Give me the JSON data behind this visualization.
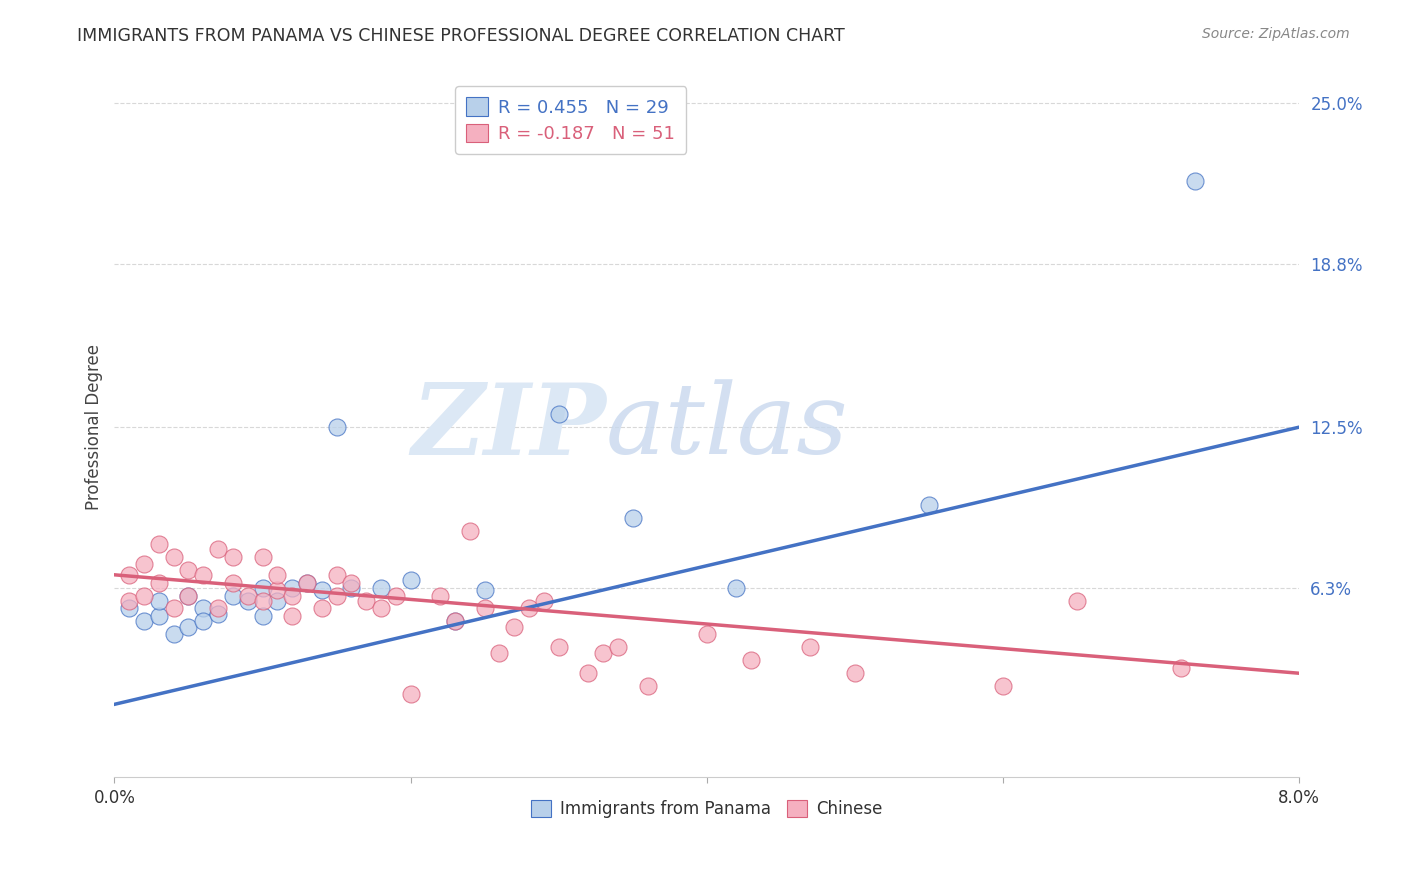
{
  "title": "IMMIGRANTS FROM PANAMA VS CHINESE PROFESSIONAL DEGREE CORRELATION CHART",
  "source": "Source: ZipAtlas.com",
  "ylabel": "Professional Degree",
  "xlim": [
    0.0,
    0.08
  ],
  "ylim": [
    -0.01,
    0.26
  ],
  "xticks": [
    0.0,
    0.02,
    0.04,
    0.06,
    0.08
  ],
  "xtick_labels": [
    "0.0%",
    "",
    "",
    "",
    "8.0%"
  ],
  "ytick_labels": [
    "25.0%",
    "18.8%",
    "12.5%",
    "6.3%"
  ],
  "yticks": [
    0.25,
    0.188,
    0.125,
    0.063
  ],
  "blue_label": "Immigrants from Panama",
  "pink_label": "Chinese",
  "blue_R": "R = 0.455",
  "blue_N": "N = 29",
  "pink_R": "R = -0.187",
  "pink_N": "N = 51",
  "blue_color": "#b8d0ea",
  "pink_color": "#f5b0c0",
  "blue_line_color": "#4472c4",
  "pink_line_color": "#d9607a",
  "background_color": "#ffffff",
  "grid_color": "#d8d8d8",
  "watermark_color": "#dce8f5",
  "blue_scatter_x": [
    0.001,
    0.002,
    0.003,
    0.003,
    0.004,
    0.005,
    0.005,
    0.006,
    0.006,
    0.007,
    0.008,
    0.009,
    0.01,
    0.01,
    0.011,
    0.012,
    0.013,
    0.014,
    0.015,
    0.016,
    0.018,
    0.02,
    0.023,
    0.025,
    0.03,
    0.035,
    0.042,
    0.055,
    0.073
  ],
  "blue_scatter_y": [
    0.055,
    0.05,
    0.052,
    0.058,
    0.045,
    0.06,
    0.048,
    0.055,
    0.05,
    0.053,
    0.06,
    0.058,
    0.052,
    0.063,
    0.058,
    0.063,
    0.065,
    0.062,
    0.125,
    0.063,
    0.063,
    0.066,
    0.05,
    0.062,
    0.13,
    0.09,
    0.063,
    0.095,
    0.22
  ],
  "pink_scatter_x": [
    0.001,
    0.001,
    0.002,
    0.002,
    0.003,
    0.003,
    0.004,
    0.004,
    0.005,
    0.005,
    0.006,
    0.007,
    0.007,
    0.008,
    0.008,
    0.009,
    0.01,
    0.01,
    0.011,
    0.011,
    0.012,
    0.012,
    0.013,
    0.014,
    0.015,
    0.015,
    0.016,
    0.017,
    0.018,
    0.019,
    0.02,
    0.022,
    0.023,
    0.024,
    0.025,
    0.026,
    0.027,
    0.028,
    0.029,
    0.03,
    0.032,
    0.033,
    0.034,
    0.036,
    0.04,
    0.043,
    0.047,
    0.05,
    0.06,
    0.065,
    0.072
  ],
  "pink_scatter_y": [
    0.068,
    0.058,
    0.072,
    0.06,
    0.08,
    0.065,
    0.075,
    0.055,
    0.06,
    0.07,
    0.068,
    0.078,
    0.055,
    0.065,
    0.075,
    0.06,
    0.058,
    0.075,
    0.062,
    0.068,
    0.06,
    0.052,
    0.065,
    0.055,
    0.06,
    0.068,
    0.065,
    0.058,
    0.055,
    0.06,
    0.022,
    0.06,
    0.05,
    0.085,
    0.055,
    0.038,
    0.048,
    0.055,
    0.058,
    0.04,
    0.03,
    0.038,
    0.04,
    0.025,
    0.045,
    0.035,
    0.04,
    0.03,
    0.025,
    0.058,
    0.032
  ],
  "blue_line_x": [
    0.0,
    0.08
  ],
  "blue_line_y": [
    0.018,
    0.125
  ],
  "pink_line_x": [
    0.0,
    0.08
  ],
  "pink_line_y": [
    0.068,
    0.03
  ]
}
